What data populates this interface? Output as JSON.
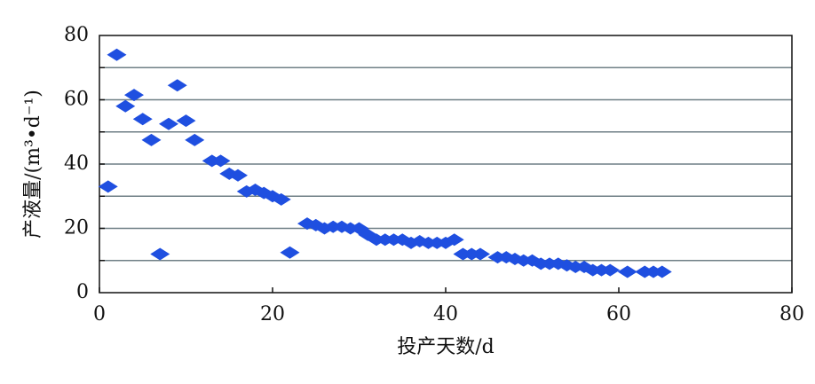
{
  "chart_data": {
    "type": "scatter",
    "x_label": "投产天数/d",
    "y_label": "产液量/(m³•d⁻¹)",
    "xlim": [
      0,
      80
    ],
    "xticks": [
      0,
      20,
      40,
      60,
      80
    ],
    "ylim": [
      0,
      80
    ],
    "yticks": [
      0,
      20,
      40,
      60,
      80
    ],
    "ygrid": [
      10,
      20,
      30,
      40,
      50,
      60,
      70
    ],
    "color": "#1f4fe0",
    "x": [
      1,
      2,
      3,
      4,
      5,
      6,
      7,
      8,
      9,
      10,
      11,
      13,
      14,
      15,
      16,
      17,
      18,
      19,
      20,
      21,
      22,
      24,
      25,
      26,
      27,
      28,
      29,
      30,
      31,
      32,
      33,
      34,
      35,
      36,
      37,
      38,
      39,
      40,
      41,
      42,
      43,
      44,
      46,
      47,
      48,
      49,
      50,
      51,
      52,
      53,
      54,
      55,
      56,
      57,
      58,
      59,
      61,
      63,
      64,
      65
    ],
    "values": [
      33,
      74,
      58,
      61.5,
      54,
      47.5,
      12,
      52.5,
      64.5,
      53.5,
      47.5,
      41,
      41,
      37,
      36.5,
      31.5,
      32,
      31,
      30,
      29,
      12.5,
      21.5,
      21,
      20,
      20.5,
      20.5,
      20,
      20,
      18,
      16.5,
      16.5,
      16.5,
      16.5,
      15.5,
      16,
      15.5,
      15.5,
      15.5,
      16.5,
      12,
      12,
      12,
      11,
      11,
      10.5,
      10,
      10,
      9,
      9,
      9,
      8.5,
      8,
      8,
      7,
      7,
      7,
      6.5,
      6.5,
      6.5,
      6.5
    ]
  }
}
